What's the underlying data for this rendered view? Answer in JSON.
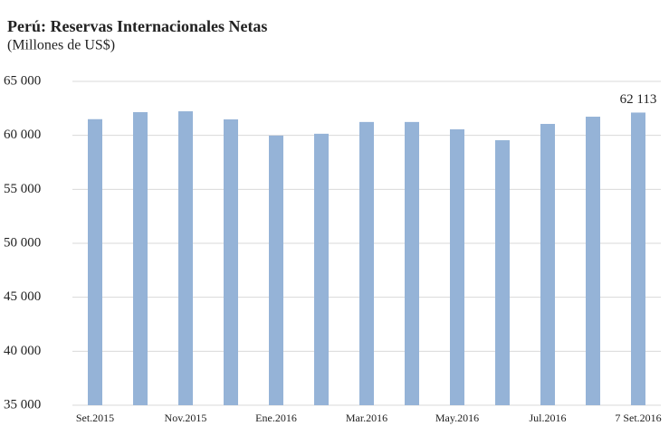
{
  "chart_data": {
    "type": "bar",
    "title": "Perú: Reservas Internacionales Netas",
    "subtitle": "(Millones de US$)",
    "categories": [
      "Set.2015",
      null,
      "Nov.2015",
      null,
      "Ene.2016",
      null,
      "Mar.2016",
      null,
      "May.2016",
      null,
      "Jul.2016",
      null,
      "7 Set.2016"
    ],
    "values": [
      61500,
      62150,
      62230,
      61480,
      59980,
      60150,
      61240,
      61240,
      60560,
      59550,
      61060,
      61730,
      62113
    ],
    "value_labels": [
      null,
      null,
      null,
      null,
      null,
      null,
      null,
      null,
      null,
      null,
      null,
      null,
      "62 113"
    ],
    "color": "#95b3d7",
    "ylim": [
      35000,
      65000
    ],
    "yticks": [
      {
        "value": 35000,
        "label": "35 000"
      },
      {
        "value": 40000,
        "label": "40 000"
      },
      {
        "value": 45000,
        "label": "45 000"
      },
      {
        "value": 50000,
        "label": "50 000"
      },
      {
        "value": 55000,
        "label": "55 000"
      },
      {
        "value": 60000,
        "label": "60 000"
      },
      {
        "value": 65000,
        "label": "65 000"
      }
    ],
    "grid": true
  }
}
